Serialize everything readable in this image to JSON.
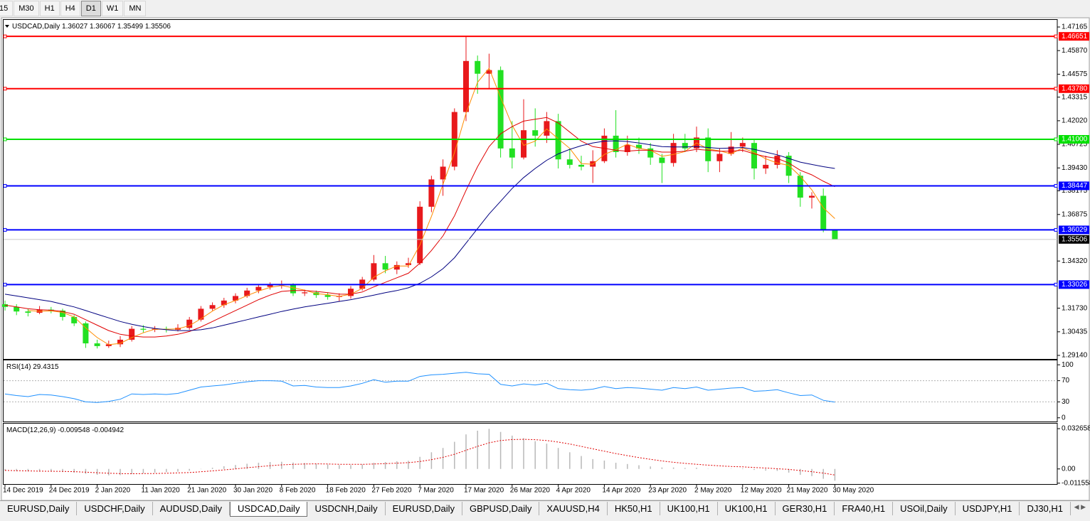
{
  "toolbar": {
    "timeframes": [
      "15",
      "M30",
      "H1",
      "H4",
      "D1",
      "W1",
      "MN"
    ],
    "active": 4
  },
  "tabs": {
    "items": [
      "EURUSD,Daily",
      "USDCHF,Daily",
      "AUDUSD,Daily",
      "USDCAD,Daily",
      "USDCNH,Daily",
      "EURUSD,Daily",
      "GBPUSD,Daily",
      "XAUUSD,H4",
      "HK50,H1",
      "UK100,H1",
      "UK100,H1",
      "GER30,H1",
      "FRA40,H1",
      "USOil,Daily",
      "USDJPY,H1",
      "DJ30,H1"
    ],
    "active": 3
  },
  "chart_data": [
    {
      "type": "candlestick",
      "symbol": "USDCAD,Daily",
      "categories": [
        "14 Dec 2019",
        null,
        null,
        null,
        "24 Dec 2019",
        null,
        null,
        null,
        "2 Jan 2020",
        null,
        null,
        null,
        "11 Jan 2020",
        null,
        null,
        null,
        "21 Jan 2020",
        null,
        null,
        null,
        "30 Jan 2020",
        null,
        null,
        null,
        "8 Feb 2020",
        null,
        null,
        null,
        "18 Feb 2020",
        null,
        null,
        null,
        "27 Feb 2020",
        null,
        null,
        null,
        "7 Mar 2020",
        null,
        null,
        null,
        "17 Mar 2020",
        null,
        null,
        null,
        "26 Mar 2020",
        null,
        null,
        null,
        "4 Apr 2020",
        null,
        null,
        null,
        "14 Apr 2020",
        null,
        null,
        null,
        "23 Apr 2020",
        null,
        null,
        null,
        "2 May 2020",
        null,
        null,
        null,
        "12 May 2020",
        null,
        null,
        null,
        "21 May 2020",
        null,
        null,
        null,
        "30 May 2020"
      ],
      "candles": [
        [
          1.3195,
          1.3215,
          1.316,
          1.318
        ],
        [
          1.318,
          1.3195,
          1.3135,
          1.3155
        ],
        [
          1.3155,
          1.317,
          1.3128,
          1.3148
        ],
        [
          1.3148,
          1.3185,
          1.314,
          1.3165
        ],
        [
          1.3165,
          1.318,
          1.3145,
          1.316
        ],
        [
          1.316,
          1.317,
          1.3105,
          1.3125
        ],
        [
          1.3125,
          1.3135,
          1.3075,
          1.309
        ],
        [
          1.309,
          1.31,
          1.2955,
          1.298
        ],
        [
          1.298,
          1.3,
          1.2952,
          1.2965
        ],
        [
          1.2965,
          1.2995,
          1.2955,
          1.2975
        ],
        [
          1.2975,
          1.302,
          1.296,
          1.3
        ],
        [
          1.3,
          1.3075,
          1.299,
          1.306
        ],
        [
          1.306,
          1.308,
          1.304,
          1.3055
        ],
        [
          1.3055,
          1.3075,
          1.3042,
          1.306
        ],
        [
          1.306,
          1.3072,
          1.304,
          1.3055
        ],
        [
          1.3055,
          1.3085,
          1.3045,
          1.3065
        ],
        [
          1.3065,
          1.3125,
          1.3055,
          1.311
        ],
        [
          1.311,
          1.3185,
          1.31,
          1.317
        ],
        [
          1.317,
          1.3205,
          1.316,
          1.319
        ],
        [
          1.319,
          1.323,
          1.3175,
          1.3215
        ],
        [
          1.3215,
          1.3255,
          1.32,
          1.324
        ],
        [
          1.324,
          1.3285,
          1.323,
          1.327
        ],
        [
          1.327,
          1.3305,
          1.3255,
          1.329
        ],
        [
          1.329,
          1.3315,
          1.3275,
          1.33
        ],
        [
          1.33,
          1.3325,
          1.328,
          1.3302
        ],
        [
          1.3302,
          1.331,
          1.324,
          1.3255
        ],
        [
          1.3255,
          1.3275,
          1.324,
          1.326
        ],
        [
          1.326,
          1.327,
          1.323,
          1.3245
        ],
        [
          1.3245,
          1.326,
          1.322,
          1.3235
        ],
        [
          1.3235,
          1.3255,
          1.321,
          1.324
        ],
        [
          1.324,
          1.3295,
          1.3225,
          1.328
        ],
        [
          1.328,
          1.3345,
          1.327,
          1.333
        ],
        [
          1.333,
          1.3465,
          1.332,
          1.342
        ],
        [
          1.342,
          1.346,
          1.3365,
          1.3385
        ],
        [
          1.3385,
          1.343,
          1.336,
          1.341
        ],
        [
          1.341,
          1.345,
          1.3395,
          1.342
        ],
        [
          1.342,
          1.376,
          1.341,
          1.373
        ],
        [
          1.373,
          1.39,
          1.37,
          1.388
        ],
        [
          1.388,
          1.399,
          1.379,
          1.395
        ],
        [
          1.395,
          1.427,
          1.393,
          1.425
        ],
        [
          1.425,
          1.4667,
          1.42,
          1.453
        ],
        [
          1.453,
          1.456,
          1.435,
          1.446
        ],
        [
          1.446,
          1.457,
          1.438,
          1.448
        ],
        [
          1.448,
          1.45,
          1.4,
          1.405
        ],
        [
          1.405,
          1.42,
          1.394,
          1.4
        ],
        [
          1.4,
          1.432,
          1.399,
          1.415
        ],
        [
          1.415,
          1.427,
          1.406,
          1.412
        ],
        [
          1.412,
          1.425,
          1.408,
          1.42
        ],
        [
          1.42,
          1.424,
          1.394,
          1.399
        ],
        [
          1.399,
          1.405,
          1.394,
          1.396
        ],
        [
          1.396,
          1.401,
          1.393,
          1.395
        ],
        [
          1.395,
          1.404,
          1.386,
          1.398
        ],
        [
          1.398,
          1.416,
          1.397,
          1.412
        ],
        [
          1.412,
          1.426,
          1.4,
          1.403
        ],
        [
          1.403,
          1.412,
          1.401,
          1.407
        ],
        [
          1.407,
          1.411,
          1.402,
          1.405
        ],
        [
          1.405,
          1.408,
          1.396,
          1.4
        ],
        [
          1.4,
          1.402,
          1.386,
          1.397
        ],
        [
          1.397,
          1.413,
          1.395,
          1.408
        ],
        [
          1.408,
          1.413,
          1.403,
          1.405
        ],
        [
          1.405,
          1.417,
          1.403,
          1.411
        ],
        [
          1.411,
          1.416,
          1.392,
          1.398
        ],
        [
          1.398,
          1.405,
          1.392,
          1.402
        ],
        [
          1.402,
          1.414,
          1.401,
          1.406
        ],
        [
          1.406,
          1.411,
          1.403,
          1.408
        ],
        [
          1.408,
          1.41,
          1.388,
          1.394
        ],
        [
          1.394,
          1.401,
          1.391,
          1.396
        ],
        [
          1.396,
          1.404,
          1.394,
          1.401
        ],
        [
          1.401,
          1.403,
          1.386,
          1.39
        ],
        [
          1.39,
          1.392,
          1.373,
          1.378
        ],
        [
          1.378,
          1.381,
          1.372,
          1.379
        ],
        [
          1.379,
          1.383,
          1.359,
          1.36027
        ],
        [
          1.36027,
          1.36067,
          1.35499,
          1.35506
        ]
      ],
      "up_color": "#e8191c",
      "down_color": "#22e022",
      "series": [
        {
          "color": "#ff8c00",
          "values": [
            null,
            null,
            1.3161,
            1.3156,
            1.3158,
            1.315,
            1.3125,
            1.3065,
            1.3012,
            1.2973,
            1.298,
            1.3012,
            1.3038,
            1.3058,
            1.3057,
            1.306,
            1.3077,
            1.3115,
            1.3157,
            1.3192,
            1.3215,
            1.3242,
            1.3267,
            1.3287,
            1.3297,
            1.3285,
            1.3272,
            1.3253,
            1.3247,
            1.3238,
            1.325,
            1.3282,
            1.3343,
            1.3378,
            1.3405,
            1.3405,
            1.352,
            1.3677,
            1.3853,
            1.4027,
            1.4243,
            1.4413,
            1.449,
            1.433,
            1.4177,
            1.4067,
            1.409,
            1.4157,
            1.4103,
            1.405,
            1.3967,
            1.3963,
            1.4017,
            1.4043,
            1.4073,
            1.405,
            1.404,
            1.4007,
            1.4017,
            1.4033,
            1.408,
            1.4047,
            1.4037,
            1.402,
            1.4053,
            1.4027,
            1.3993,
            1.397,
            1.3957,
            1.3897,
            1.3823,
            1.3724,
            1.3665
          ]
        },
        {
          "color": "#e00000",
          "values": [
            1.319,
            1.318,
            1.317,
            1.3165,
            1.3162,
            1.3155,
            1.314,
            1.311,
            1.308,
            1.305,
            1.303,
            1.302,
            1.3015,
            1.3015,
            1.302,
            1.303,
            1.3045,
            1.307,
            1.31,
            1.313,
            1.316,
            1.319,
            1.322,
            1.3245,
            1.3265,
            1.327,
            1.327,
            1.3265,
            1.3258,
            1.325,
            1.325,
            1.3262,
            1.329,
            1.3315,
            1.334,
            1.3365,
            1.342,
            1.349,
            1.357,
            1.368,
            1.382,
            1.395,
            1.406,
            1.413,
            1.417,
            1.42,
            1.421,
            1.422,
            1.419,
            1.414,
            1.409,
            1.406,
            1.405,
            1.404,
            1.4035,
            1.404,
            1.404,
            1.403,
            1.403,
            1.4035,
            1.4045,
            1.404,
            1.4035,
            1.4035,
            1.404,
            1.402,
            1.4005,
            1.3995,
            1.397,
            1.393,
            1.3905,
            1.387,
            1.384
          ]
        },
        {
          "color": "#000080",
          "values": [
            1.325,
            1.324,
            1.323,
            1.322,
            1.321,
            1.3195,
            1.318,
            1.316,
            1.314,
            1.312,
            1.31,
            1.3085,
            1.3072,
            1.3062,
            1.3055,
            1.305,
            1.305,
            1.3055,
            1.3065,
            1.308,
            1.3095,
            1.311,
            1.3125,
            1.314,
            1.3155,
            1.3168,
            1.318,
            1.319,
            1.32,
            1.321,
            1.322,
            1.3232,
            1.3245,
            1.3258,
            1.327,
            1.3285,
            1.331,
            1.3345,
            1.339,
            1.345,
            1.353,
            1.361,
            1.369,
            1.376,
            1.383,
            1.389,
            1.394,
            1.3985,
            1.402,
            1.4045,
            1.4065,
            1.408,
            1.409,
            1.4092,
            1.4088,
            1.408,
            1.407,
            1.406,
            1.4058,
            1.4058,
            1.406,
            1.4055,
            1.405,
            1.4052,
            1.4055,
            1.4045,
            1.403,
            1.4015,
            1.3995,
            1.3975,
            1.3962,
            1.395,
            1.394
          ]
        }
      ],
      "levels": [
        {
          "value": 1.46651,
          "color": "#ff0000"
        },
        {
          "value": 1.4378,
          "label": "1.43780",
          "color": "#ff0000"
        },
        {
          "value": 1.41,
          "label": "1.41000",
          "color": "#00e000"
        },
        {
          "value": 1.38447,
          "color": "#0000ff"
        },
        {
          "value": 1.36029,
          "color": "#0000ff"
        },
        {
          "value": 1.33026,
          "color": "#0000ff"
        }
      ],
      "ylim": [
        1.28945,
        1.47516
      ],
      "yticks": [
        1.47165,
        {
          "value": 1.4587,
          "label": "1.45870"
        },
        1.44575,
        1.43315,
        {
          "value": 1.4202,
          "label": "1.42020"
        },
        1.40725,
        {
          "value": 1.3943,
          "label": "1.39430"
        },
        1.38175,
        1.36875,
        {
          "value": 1.3432,
          "label": "1.34320"
        },
        {
          "value": 1.3173,
          "label": "1.31730"
        },
        1.30435,
        {
          "value": 1.2914,
          "label": "1.29140"
        }
      ]
    },
    {
      "type": "line",
      "label": "RSI(14)",
      "color": "#1e90ff",
      "values": [
        45,
        42,
        40,
        44,
        43,
        40,
        36,
        30,
        29,
        31,
        35,
        45,
        44,
        45,
        44,
        46,
        52,
        58,
        60,
        62,
        65,
        68,
        70,
        70,
        69,
        60,
        61,
        58,
        57,
        57,
        60,
        65,
        72,
        67,
        69,
        69,
        78,
        81,
        82,
        84,
        86,
        83,
        82,
        63,
        60,
        64,
        62,
        65,
        55,
        53,
        52,
        54,
        59,
        55,
        57,
        56,
        54,
        52,
        57,
        55,
        58,
        52,
        54,
        56,
        57,
        50,
        51,
        53,
        47,
        42,
        43,
        33,
        29.4315
      ],
      "levels": [
        70,
        30
      ],
      "ylim": [
        -7,
        107
      ],
      "yticks": [
        100,
        70,
        30,
        0
      ]
    },
    {
      "type": "macd",
      "label": "MACD(12,26,9)",
      "histogram_color": "#b8b8b8",
      "signal_color": "#e00000",
      "histogram": [
        -0.0015,
        -0.0018,
        -0.002,
        -0.0021,
        -0.0022,
        -0.0025,
        -0.003,
        -0.004,
        -0.0048,
        -0.0052,
        -0.005,
        -0.0042,
        -0.0036,
        -0.003,
        -0.0026,
        -0.0022,
        -0.0014,
        -0.0002,
        0.001,
        0.0022,
        0.0032,
        0.0042,
        0.005,
        0.0056,
        0.0058,
        0.0052,
        0.0048,
        0.0042,
        0.0036,
        0.0031,
        0.0031,
        0.0036,
        0.005,
        0.0056,
        0.0062,
        0.0066,
        0.0098,
        0.0135,
        0.017,
        0.022,
        0.028,
        0.031,
        0.0325,
        0.03,
        0.027,
        0.025,
        0.0225,
        0.0205,
        0.017,
        0.0135,
        0.0105,
        0.008,
        0.0068,
        0.005,
        0.004,
        0.003,
        0.002,
        0.0012,
        0.0012,
        0.0008,
        0.001,
        0.0002,
        0,
        0.0002,
        0.0004,
        -0.0008,
        -0.0014,
        -0.0016,
        -0.003,
        -0.0048,
        -0.0058,
        -0.008,
        -0.009548
      ],
      "signal": [
        -0.0012,
        -0.0014,
        -0.0016,
        -0.0018,
        -0.0019,
        -0.002,
        -0.0022,
        -0.0026,
        -0.0031,
        -0.0035,
        -0.0038,
        -0.0039,
        -0.0038,
        -0.0037,
        -0.0035,
        -0.0032,
        -0.0029,
        -0.0023,
        -0.0016,
        -0.0008,
        0,
        0.001,
        0.0018,
        0.0026,
        0.0033,
        0.0037,
        0.004,
        0.0041,
        0.004,
        0.0038,
        0.0037,
        0.0037,
        0.004,
        0.0043,
        0.0047,
        0.0051,
        0.006,
        0.0075,
        0.0094,
        0.0119,
        0.0151,
        0.0183,
        0.0212,
        0.023,
        0.0238,
        0.024,
        0.0237,
        0.023,
        0.0218,
        0.0202,
        0.0183,
        0.0163,
        0.0144,
        0.0125,
        0.0108,
        0.0092,
        0.0078,
        0.0065,
        0.0054,
        0.0045,
        0.0038,
        0.0031,
        0.0025,
        0.002,
        0.0017,
        0.0012,
        0.0007,
        0.0002,
        -0.0004,
        -0.0013,
        -0.0022,
        -0.0034,
        -0.004942
      ],
      "ylim": [
        -0.01225,
        0.03616
      ],
      "yticks": [
        0.032658,
        {
          "value": 0,
          "label": "0.00"
        },
        -0.011558
      ]
    }
  ]
}
